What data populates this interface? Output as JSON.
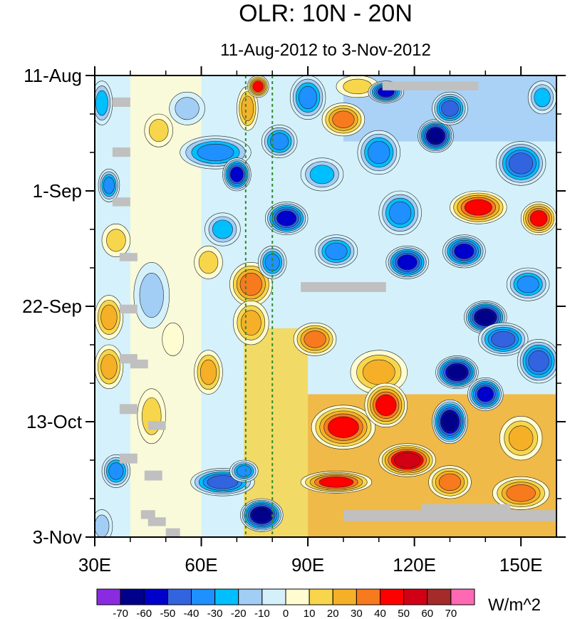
{
  "chart_data": {
    "type": "heatmap",
    "title": "OLR: 10N - 20N",
    "subtitle": "11-Aug-2012 to 3-Nov-2012",
    "x_axis": {
      "min": 30,
      "max": 160,
      "ticks": [
        {
          "value": 30,
          "label": "30E"
        },
        {
          "value": 60,
          "label": "60E"
        },
        {
          "value": 90,
          "label": "90E"
        },
        {
          "value": 120,
          "label": "120E"
        },
        {
          "value": 150,
          "label": "150E"
        }
      ],
      "minor_step": 10
    },
    "y_axis": {
      "min": 0,
      "max": 84,
      "reversed": true,
      "ticks": [
        {
          "value": 0,
          "label": "11-Aug"
        },
        {
          "value": 21,
          "label": "1-Sep"
        },
        {
          "value": 42,
          "label": "22-Sep"
        },
        {
          "value": 63,
          "label": "13-Oct"
        },
        {
          "value": 84,
          "label": "3-Nov"
        }
      ],
      "minor_step": 7
    },
    "reference_lines": [
      {
        "lon": 72.5,
        "style": "dashed",
        "color": "#2e8b2e"
      },
      {
        "lon": 80,
        "style": "dashed",
        "color": "#2e8b2e"
      }
    ],
    "colorbar": {
      "label": "W/m^2",
      "levels": [
        -70,
        -60,
        -50,
        -40,
        -30,
        -20,
        -10,
        0,
        10,
        20,
        30,
        40,
        50,
        60,
        70
      ],
      "colors": [
        "#8a2be2",
        "#00008b",
        "#0000cd",
        "#3264e0",
        "#1e90ff",
        "#00bfff",
        "#a2cdf5",
        "#d4f1fb",
        "#fffcd2",
        "#f7d64b",
        "#f5b028",
        "#f87a1e",
        "#ff0000",
        "#d20014",
        "#a52a2a",
        "#ff69b4"
      ]
    },
    "missing_color": "#c0c0c0",
    "missing_patches": [
      {
        "lon": [
          111,
          138
        ],
        "day": [
          1.1,
          2.7
        ]
      },
      {
        "lon": [
          35,
          40
        ],
        "day": [
          4.0,
          5.7
        ]
      },
      {
        "lon": [
          35,
          40
        ],
        "day": [
          13.1,
          14.8
        ]
      },
      {
        "lon": [
          35,
          40
        ],
        "day": [
          22.2,
          23.8
        ]
      },
      {
        "lon": [
          37,
          42
        ],
        "day": [
          32.3,
          33.8
        ]
      },
      {
        "lon": [
          88,
          112
        ],
        "day": [
          37.6,
          39.4
        ]
      },
      {
        "lon": [
          37,
          42
        ],
        "day": [
          41.7,
          43.3
        ]
      },
      {
        "lon": [
          37,
          42
        ],
        "day": [
          50.7,
          52.4
        ]
      },
      {
        "lon": [
          40,
          45
        ],
        "day": [
          51.7,
          53.3
        ]
      },
      {
        "lon": [
          37,
          42
        ],
        "day": [
          59.8,
          61.6
        ]
      },
      {
        "lon": [
          45,
          50
        ],
        "day": [
          62.9,
          64.5
        ]
      },
      {
        "lon": [
          37,
          42
        ],
        "day": [
          68.8,
          70.6
        ]
      },
      {
        "lon": [
          44,
          49
        ],
        "day": [
          71.9,
          73.7
        ]
      },
      {
        "lon": [
          100,
          160
        ],
        "day": [
          79.1,
          81.1
        ]
      },
      {
        "lon": [
          122,
          147
        ],
        "day": [
          78.0,
          79.5
        ]
      },
      {
        "lon": [
          43,
          47
        ],
        "day": [
          79.1,
          80.7
        ]
      },
      {
        "lon": [
          45,
          50
        ],
        "day": [
          80.4,
          82.0
        ]
      },
      {
        "lon": [
          50,
          54
        ],
        "day": [
          82.4,
          84.0
        ]
      }
    ],
    "anomaly_features": [
      {
        "lon": 32,
        "day": 5,
        "value": -25,
        "rx": 3,
        "ry": 4
      },
      {
        "lon": 34,
        "day": 20,
        "value": -35,
        "rx": 3,
        "ry": 3
      },
      {
        "lon": 36,
        "day": 30,
        "value": 12,
        "rx": 4,
        "ry": 3
      },
      {
        "lon": 34,
        "day": 44,
        "value": 28,
        "rx": 4,
        "ry": 4
      },
      {
        "lon": 34,
        "day": 53,
        "value": 30,
        "rx": 4,
        "ry": 4
      },
      {
        "lon": 36,
        "day": 72,
        "value": -35,
        "rx": 4,
        "ry": 3
      },
      {
        "lon": 32,
        "day": 82,
        "value": -20,
        "rx": 3,
        "ry": 3
      },
      {
        "lon": 46,
        "day": 40,
        "value": -15,
        "rx": 5,
        "ry": 6
      },
      {
        "lon": 46,
        "day": 62,
        "value": 15,
        "rx": 4,
        "ry": 5
      },
      {
        "lon": 48,
        "day": 10,
        "value": 20,
        "rx": 4,
        "ry": 3
      },
      {
        "lon": 56,
        "day": 6,
        "value": -12,
        "rx": 5,
        "ry": 3
      },
      {
        "lon": 52,
        "day": 48,
        "value": 6,
        "rx": 3,
        "ry": 3
      },
      {
        "lon": 62,
        "day": 54,
        "value": 25,
        "rx": 4,
        "ry": 4
      },
      {
        "lon": 64,
        "day": 14,
        "value": -40,
        "rx": 10,
        "ry": 3
      },
      {
        "lon": 62,
        "day": 34,
        "value": 20,
        "rx": 4,
        "ry": 3
      },
      {
        "lon": 70,
        "day": 18,
        "value": -60,
        "rx": 4,
        "ry": 3
      },
      {
        "lon": 66,
        "day": 28,
        "value": -30,
        "rx": 5,
        "ry": 3
      },
      {
        "lon": 73,
        "day": 6,
        "value": 25,
        "rx": 3,
        "ry": 4
      },
      {
        "lon": 76,
        "day": 2,
        "value": 45,
        "rx": 3,
        "ry": 2
      },
      {
        "lon": 74,
        "day": 38,
        "value": 35,
        "rx": 6,
        "ry": 4
      },
      {
        "lon": 74,
        "day": 45,
        "value": 30,
        "rx": 5,
        "ry": 4
      },
      {
        "lon": 66,
        "day": 74,
        "value": -50,
        "rx": 9,
        "ry": 2.5
      },
      {
        "lon": 72,
        "day": 72,
        "value": -40,
        "rx": 4,
        "ry": 2
      },
      {
        "lon": 77,
        "day": 80,
        "value": -70,
        "rx": 6,
        "ry": 3
      },
      {
        "lon": 82,
        "day": 12,
        "value": -40,
        "rx": 5,
        "ry": 3
      },
      {
        "lon": 84,
        "day": 26,
        "value": -55,
        "rx": 6,
        "ry": 3
      },
      {
        "lon": 80,
        "day": 34,
        "value": -35,
        "rx": 4,
        "ry": 3
      },
      {
        "lon": 90,
        "day": 4,
        "value": -35,
        "rx": 5,
        "ry": 4
      },
      {
        "lon": 94,
        "day": 18,
        "value": -30,
        "rx": 6,
        "ry": 3
      },
      {
        "lon": 92,
        "day": 48,
        "value": 40,
        "rx": 6,
        "ry": 3
      },
      {
        "lon": 100,
        "day": 8,
        "value": 35,
        "rx": 6,
        "ry": 3
      },
      {
        "lon": 104,
        "day": 2,
        "value": 20,
        "rx": 6,
        "ry": 2
      },
      {
        "lon": 98,
        "day": 32,
        "value": -40,
        "rx": 6,
        "ry": 3
      },
      {
        "lon": 100,
        "day": 64,
        "value": 45,
        "rx": 9,
        "ry": 4
      },
      {
        "lon": 98,
        "day": 74,
        "value": 50,
        "rx": 10,
        "ry": 2
      },
      {
        "lon": 112,
        "day": 3,
        "value": -55,
        "rx": 5,
        "ry": 2
      },
      {
        "lon": 110,
        "day": 14,
        "value": -35,
        "rx": 6,
        "ry": 4
      },
      {
        "lon": 116,
        "day": 25,
        "value": -40,
        "rx": 6,
        "ry": 4
      },
      {
        "lon": 118,
        "day": 34,
        "value": -55,
        "rx": 6,
        "ry": 3
      },
      {
        "lon": 110,
        "day": 54,
        "value": 30,
        "rx": 8,
        "ry": 4
      },
      {
        "lon": 112,
        "day": 60,
        "value": 50,
        "rx": 6,
        "ry": 4
      },
      {
        "lon": 118,
        "day": 70,
        "value": 55,
        "rx": 8,
        "ry": 3
      },
      {
        "lon": 126,
        "day": 11,
        "value": -65,
        "rx": 5,
        "ry": 3
      },
      {
        "lon": 130,
        "day": 6,
        "value": -45,
        "rx": 5,
        "ry": 3
      },
      {
        "lon": 138,
        "day": 24,
        "value": 50,
        "rx": 8,
        "ry": 3
      },
      {
        "lon": 134,
        "day": 32,
        "value": -60,
        "rx": 6,
        "ry": 3
      },
      {
        "lon": 140,
        "day": 44,
        "value": -65,
        "rx": 6,
        "ry": 3
      },
      {
        "lon": 145,
        "day": 48,
        "value": -50,
        "rx": 7,
        "ry": 3
      },
      {
        "lon": 132,
        "day": 54,
        "value": -65,
        "rx": 6,
        "ry": 3
      },
      {
        "lon": 140,
        "day": 58,
        "value": -55,
        "rx": 5,
        "ry": 3
      },
      {
        "lon": 130,
        "day": 63,
        "value": -65,
        "rx": 5,
        "ry": 4
      },
      {
        "lon": 150,
        "day": 16,
        "value": -45,
        "rx": 7,
        "ry": 4
      },
      {
        "lon": 152,
        "day": 38,
        "value": -40,
        "rx": 6,
        "ry": 3
      },
      {
        "lon": 155,
        "day": 52,
        "value": -50,
        "rx": 6,
        "ry": 4
      },
      {
        "lon": 155,
        "day": 26,
        "value": 45,
        "rx": 5,
        "ry": 3
      },
      {
        "lon": 150,
        "day": 66,
        "value": 30,
        "rx": 6,
        "ry": 4
      },
      {
        "lon": 150,
        "day": 76,
        "value": 40,
        "rx": 8,
        "ry": 3
      },
      {
        "lon": 130,
        "day": 74,
        "value": 35,
        "rx": 6,
        "ry": 3
      },
      {
        "lon": 156,
        "day": 4,
        "value": -30,
        "rx": 4,
        "ry": 3
      }
    ]
  }
}
